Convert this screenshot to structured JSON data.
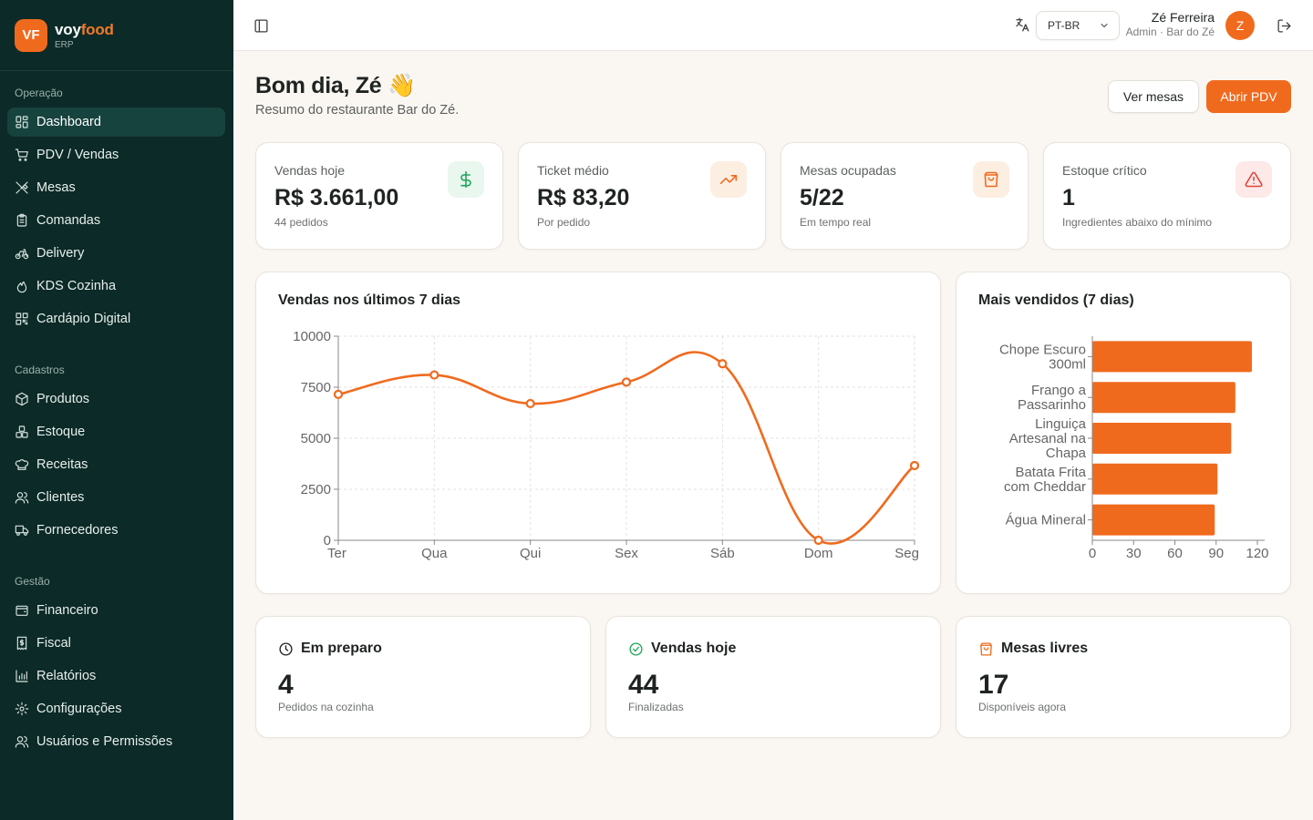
{
  "brand": {
    "logo": "VF",
    "name_part1": "voy",
    "name_part2": "food",
    "subtitle": "ERP"
  },
  "sidebar": {
    "sections": [
      {
        "title": "Operação",
        "items": [
          {
            "label": "Dashboard",
            "icon": "layout-grid-icon",
            "active": true
          },
          {
            "label": "PDV / Vendas",
            "icon": "cart-icon"
          },
          {
            "label": "Mesas",
            "icon": "utensils-icon"
          },
          {
            "label": "Comandas",
            "icon": "clipboard-icon"
          },
          {
            "label": "Delivery",
            "icon": "bike-icon"
          },
          {
            "label": "KDS Cozinha",
            "icon": "flame-icon"
          },
          {
            "label": "Cardápio Digital",
            "icon": "qrcode-icon"
          }
        ]
      },
      {
        "title": "Cadastros",
        "items": [
          {
            "label": "Produtos",
            "icon": "package-icon"
          },
          {
            "label": "Estoque",
            "icon": "boxes-icon"
          },
          {
            "label": "Receitas",
            "icon": "chef-hat-icon"
          },
          {
            "label": "Clientes",
            "icon": "users-icon"
          },
          {
            "label": "Fornecedores",
            "icon": "truck-icon"
          }
        ]
      },
      {
        "title": "Gestão",
        "items": [
          {
            "label": "Financeiro",
            "icon": "wallet-icon"
          },
          {
            "label": "Fiscal",
            "icon": "receipt-icon"
          },
          {
            "label": "Relatórios",
            "icon": "bar-chart-icon"
          },
          {
            "label": "Configurações",
            "icon": "gear-icon"
          },
          {
            "label": "Usuários e Permissões",
            "icon": "user-cog-icon"
          }
        ]
      }
    ]
  },
  "topbar": {
    "language": "PT-BR",
    "user_name": "Zé Ferreira",
    "user_role": "Admin · Bar do Zé",
    "avatar_initial": "Z"
  },
  "header": {
    "greeting": "Bom dia, Zé 👋",
    "subtitle": "Resumo do restaurante Bar do Zé.",
    "btn_secondary": "Ver mesas",
    "btn_primary": "Abrir PDV"
  },
  "kpis": [
    {
      "label": "Vendas hoje",
      "value": "R$ 3.661,00",
      "sub": "44 pedidos",
      "icon": "dollar-icon",
      "color": "#22a55b",
      "bg": "#e9f7ee"
    },
    {
      "label": "Ticket médio",
      "value": "R$ 83,20",
      "sub": "Por pedido",
      "icon": "trending-up-icon",
      "color": "#f06a1e",
      "bg": "#fdeee2"
    },
    {
      "label": "Mesas ocupadas",
      "value": "5/22",
      "sub": "Em tempo real",
      "icon": "shopping-bag-icon",
      "color": "#f06a1e",
      "bg": "#fdeee2"
    },
    {
      "label": "Estoque crítico",
      "value": "1",
      "sub": "Ingredientes abaixo do mínimo",
      "icon": "alert-triangle-icon",
      "color": "#e0443a",
      "bg": "#fce9e8"
    }
  ],
  "charts": {
    "sales_title": "Vendas nos últimos 7 dias",
    "top_title": "Mais vendidos (7 dias)"
  },
  "chart_data": [
    {
      "type": "line",
      "title": "Vendas nos últimos 7 dias",
      "categories": [
        "Ter",
        "Qua",
        "Qui",
        "Sex",
        "Sáb",
        "Dom",
        "Seg"
      ],
      "values": [
        7150,
        8100,
        6700,
        7750,
        8650,
        0,
        3661
      ],
      "ylim": [
        0,
        10000
      ],
      "yticks": [
        0,
        2500,
        5000,
        7500,
        10000
      ],
      "grid": true,
      "color": "#f06a1e"
    },
    {
      "type": "bar",
      "orientation": "horizontal",
      "title": "Mais vendidos (7 dias)",
      "categories": [
        [
          "Chope Escuro",
          "300ml"
        ],
        [
          "Frango a",
          "Passarinho"
        ],
        [
          "Linguiça",
          "Artesanal na",
          "Chapa"
        ],
        [
          "Batata Frita",
          "com Cheddar"
        ],
        [
          "Água Mineral"
        ]
      ],
      "values": [
        116,
        104,
        101,
        91,
        89
      ],
      "xlim": [
        0,
        120
      ],
      "xticks": [
        0,
        30,
        60,
        90,
        120
      ],
      "color": "#f06a1e"
    }
  ],
  "stats": [
    {
      "title": "Em preparo",
      "value": "4",
      "sub": "Pedidos na cozinha",
      "icon": "clock-icon",
      "color": "#1f2421"
    },
    {
      "title": "Vendas hoje",
      "value": "44",
      "sub": "Finalizadas",
      "icon": "check-circle-icon",
      "color": "#22a55b"
    },
    {
      "title": "Mesas livres",
      "value": "17",
      "sub": "Disponíveis agora",
      "icon": "shopping-bag-icon",
      "color": "#f06a1e"
    }
  ]
}
